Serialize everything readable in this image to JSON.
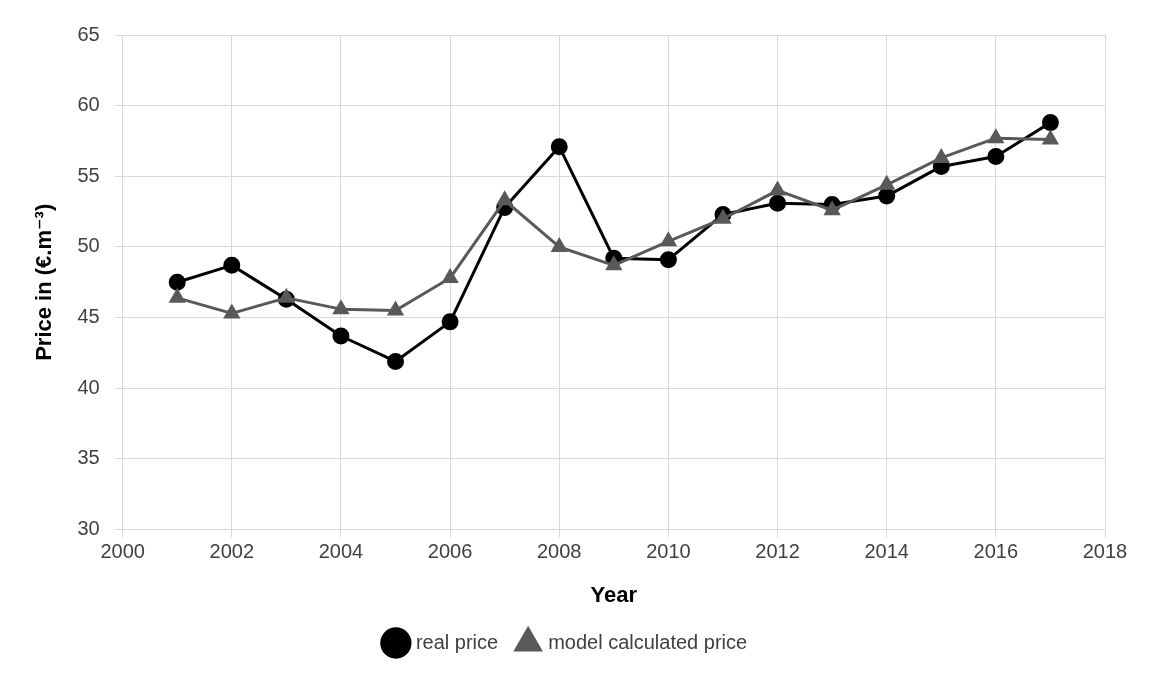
{
  "chart_data": {
    "type": "line",
    "xlabel": "Year",
    "ylabel": "Price in (€.m⁻³)",
    "x": [
      2001,
      2002,
      2003,
      2004,
      2005,
      2006,
      2007,
      2008,
      2009,
      2010,
      2011,
      2012,
      2013,
      2014,
      2015,
      2016,
      2017
    ],
    "series": [
      {
        "name": "real price",
        "color": "#000000",
        "marker": "circle",
        "values": [
          47.5,
          48.7,
          46.3,
          43.7,
          41.9,
          44.7,
          52.8,
          57.1,
          49.2,
          49.1,
          52.3,
          53.1,
          53.0,
          53.6,
          55.7,
          56.4,
          58.8
        ]
      },
      {
        "name": "model calculated price",
        "color": "#595959",
        "marker": "triangle",
        "values": [
          46.4,
          45.3,
          46.4,
          45.6,
          45.5,
          47.8,
          53.3,
          50.0,
          48.7,
          50.4,
          52.0,
          54.0,
          52.6,
          54.4,
          56.3,
          57.7,
          57.6
        ]
      }
    ],
    "xlim": [
      2000,
      2018
    ],
    "xticks": [
      2000,
      2002,
      2004,
      2006,
      2008,
      2010,
      2012,
      2014,
      2016,
      2018
    ],
    "ylim": [
      30,
      65
    ],
    "yticks": [
      30,
      35,
      40,
      45,
      50,
      55,
      60,
      65
    ],
    "grid": true,
    "legend": "bottom"
  }
}
